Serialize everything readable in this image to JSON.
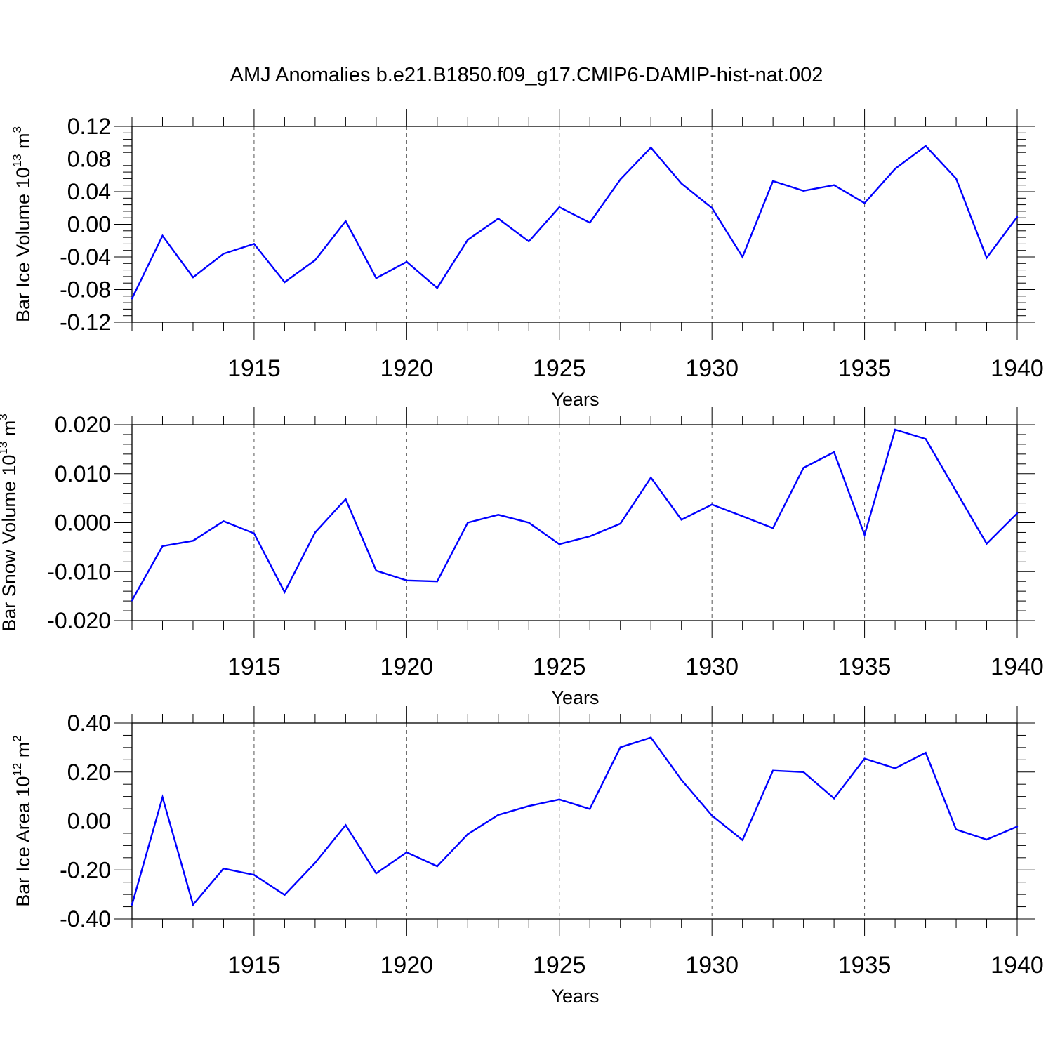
{
  "title": "AMJ Anomalies b.e21.B1850.f09_g17.CMIP6-DAMIP-hist-nat.002",
  "chart_data": [
    {
      "type": "line",
      "title": "",
      "xlabel": "Years",
      "ylabel": {
        "main": "Bar Ice Volume 10",
        "exp": "13",
        "unit": " m",
        "unit_exp": "3"
      },
      "xlim": [
        1911,
        1940
      ],
      "ylim": [
        -0.12,
        0.12
      ],
      "x_ticks": [
        "1915",
        "1920",
        "1925",
        "1930",
        "1935",
        "1940"
      ],
      "y_ticks": [
        "-0.12",
        "-0.08",
        "-0.04",
        "0.00",
        "0.04",
        "0.08",
        "0.12"
      ],
      "grid": "vertical dashed at labeled years",
      "line_color": "#0000ff",
      "x": [
        1911,
        1912,
        1913,
        1914,
        1915,
        1916,
        1917,
        1918,
        1919,
        1920,
        1921,
        1922,
        1923,
        1924,
        1925,
        1926,
        1927,
        1928,
        1929,
        1930,
        1931,
        1932,
        1933,
        1934,
        1935,
        1936,
        1937,
        1938,
        1939,
        1940
      ],
      "values": [
        -0.091,
        -0.014,
        -0.065,
        -0.036,
        -0.024,
        -0.071,
        -0.044,
        0.004,
        -0.066,
        -0.046,
        -0.078,
        -0.019,
        0.007,
        -0.021,
        0.021,
        0.002,
        0.055,
        0.094,
        0.05,
        0.02,
        -0.04,
        0.053,
        0.041,
        0.048,
        0.026,
        0.068,
        0.096,
        0.056,
        -0.041,
        0.009
      ]
    },
    {
      "type": "line",
      "title": "",
      "xlabel": "Years",
      "ylabel": {
        "main": "Bar Snow Volume 10",
        "exp": "13",
        "unit": " m",
        "unit_exp": "3"
      },
      "xlim": [
        1911,
        1940
      ],
      "ylim": [
        -0.02,
        0.02
      ],
      "x_ticks": [
        "1915",
        "1920",
        "1925",
        "1930",
        "1935",
        "1940"
      ],
      "y_ticks": [
        "-0.020",
        "-0.010",
        "0.000",
        "0.010",
        "0.020"
      ],
      "grid": "vertical dashed at labeled years",
      "line_color": "#0000ff",
      "x": [
        1911,
        1912,
        1913,
        1914,
        1915,
        1916,
        1917,
        1918,
        1919,
        1920,
        1921,
        1922,
        1923,
        1924,
        1925,
        1926,
        1927,
        1928,
        1929,
        1930,
        1931,
        1932,
        1933,
        1934,
        1935,
        1936,
        1937,
        1938,
        1939,
        1940
      ],
      "values": [
        -0.0159,
        -0.0048,
        -0.0037,
        0.0003,
        -0.0022,
        -0.0142,
        -0.002,
        0.0048,
        -0.0098,
        -0.0118,
        -0.012,
        0.0,
        0.0016,
        0.0,
        -0.0044,
        -0.0028,
        -0.0002,
        0.0092,
        0.0006,
        0.0037,
        0.0013,
        -0.0011,
        0.0112,
        0.0144,
        -0.0025,
        0.019,
        0.0171,
        0.0064,
        -0.0043,
        0.0019
      ]
    },
    {
      "type": "line",
      "title": "",
      "xlabel": "Years",
      "ylabel": {
        "main": "Bar Ice Area 10",
        "exp": "12",
        "unit": " m",
        "unit_exp": "2"
      },
      "xlim": [
        1911,
        1940
      ],
      "ylim": [
        -0.4,
        0.4
      ],
      "x_ticks": [
        "1915",
        "1920",
        "1925",
        "1930",
        "1935",
        "1940"
      ],
      "y_ticks": [
        "-0.40",
        "-0.20",
        "0.00",
        "0.20",
        "0.40"
      ],
      "grid": "vertical dashed at labeled years",
      "line_color": "#0000ff",
      "x": [
        1911,
        1912,
        1913,
        1914,
        1915,
        1916,
        1917,
        1918,
        1919,
        1920,
        1921,
        1922,
        1923,
        1924,
        1925,
        1926,
        1927,
        1928,
        1929,
        1930,
        1931,
        1932,
        1933,
        1934,
        1935,
        1936,
        1937,
        1938,
        1939,
        1940
      ],
      "values": [
        -0.342,
        0.097,
        -0.342,
        -0.194,
        -0.22,
        -0.302,
        -0.171,
        -0.017,
        -0.214,
        -0.128,
        -0.185,
        -0.054,
        0.025,
        0.061,
        0.088,
        0.049,
        0.301,
        0.341,
        0.168,
        0.022,
        -0.078,
        0.206,
        0.2,
        0.092,
        0.255,
        0.215,
        0.279,
        -0.035,
        -0.076,
        -0.023
      ]
    }
  ]
}
